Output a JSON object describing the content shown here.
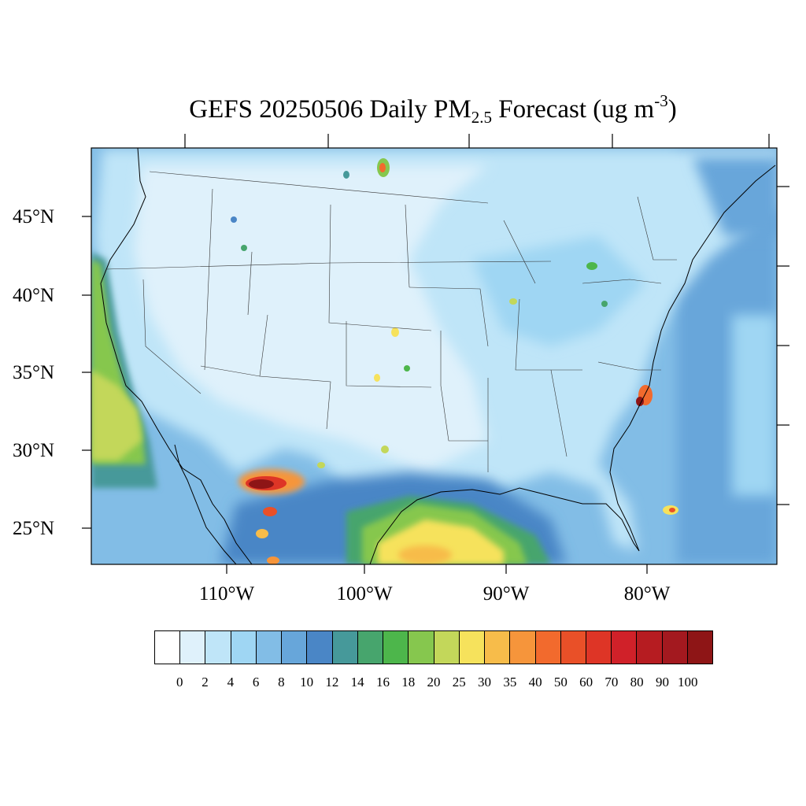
{
  "title": {
    "prefix": "GEFS 20250506 Daily PM",
    "subscript": "2.5",
    "middle": " Forecast (ug m",
    "superscript": "-3",
    "suffix": ")"
  },
  "map": {
    "lat_labels": [
      "45°N",
      "40°N",
      "35°N",
      "30°N",
      "25°N"
    ],
    "lon_labels": [
      "110°W",
      "100°W",
      "90°W",
      "80°W"
    ]
  },
  "colorbar": {
    "labels": [
      "0",
      "2",
      "4",
      "6",
      "8",
      "10",
      "12",
      "14",
      "16",
      "18",
      "20",
      "25",
      "30",
      "35",
      "40",
      "50",
      "60",
      "70",
      "80",
      "90",
      "100"
    ],
    "colors": [
      "#ffffff",
      "#dff1fb",
      "#bfe5f8",
      "#9fd6f3",
      "#82bde6",
      "#67a6da",
      "#4a86c6",
      "#46999a",
      "#47a56d",
      "#4db64b",
      "#86c74e",
      "#c3d75a",
      "#f6e25c",
      "#f7bc4a",
      "#f6953b",
      "#f26a2d",
      "#e95028",
      "#de3526",
      "#d02129",
      "#b61c21",
      "#a3191f",
      "#8e1516"
    ]
  },
  "colors": {
    "pollution_high": "#a3191f",
    "pollution_mid": "#f6e25c",
    "pollution_low": "#dff1fb"
  }
}
